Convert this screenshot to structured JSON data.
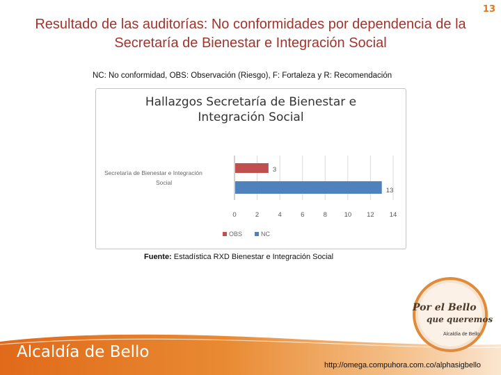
{
  "page_number": "13",
  "slide_title": "Resultado de las auditorías: No conformidades por dependencia de la Secretaría de Bienestar e Integración Social",
  "legend_note": "NC: No conformidad, OBS: Observación (Riesgo), F: Fortaleza y R: Recomendación",
  "source": {
    "label": "Fuente:",
    "text": " Estadística RXD Bienestar e Integración Social"
  },
  "footer": {
    "brand": "Alcaldía de Bello",
    "url": "http://omega.compuhora.com.co/alphasigbello"
  },
  "logo": {
    "line1": "Por el Bello",
    "line2": "que queremos",
    "line3": "Alcaldía de Bello"
  },
  "colors": {
    "title": "#a2332c",
    "obs": "#c0504d",
    "nc": "#4f81bd",
    "footer": "#e07a22",
    "page_number": "#e0781e"
  },
  "chart_data": {
    "type": "bar",
    "orientation": "horizontal",
    "title_line1": "Hallazgos  Secretaría de Bienestar e",
    "title_line2": "Integración Social",
    "categories": [
      "Secretaría de Bienestar e Integración Social"
    ],
    "series": [
      {
        "name": "OBS",
        "values": [
          3
        ],
        "color": "#c0504d"
      },
      {
        "name": "NC",
        "values": [
          13
        ],
        "color": "#4f81bd"
      }
    ],
    "xlim": [
      0,
      14
    ],
    "xticks": [
      "0",
      "2",
      "4",
      "6",
      "8",
      "10",
      "12",
      "14"
    ],
    "grid": true,
    "legend": "bottom"
  }
}
